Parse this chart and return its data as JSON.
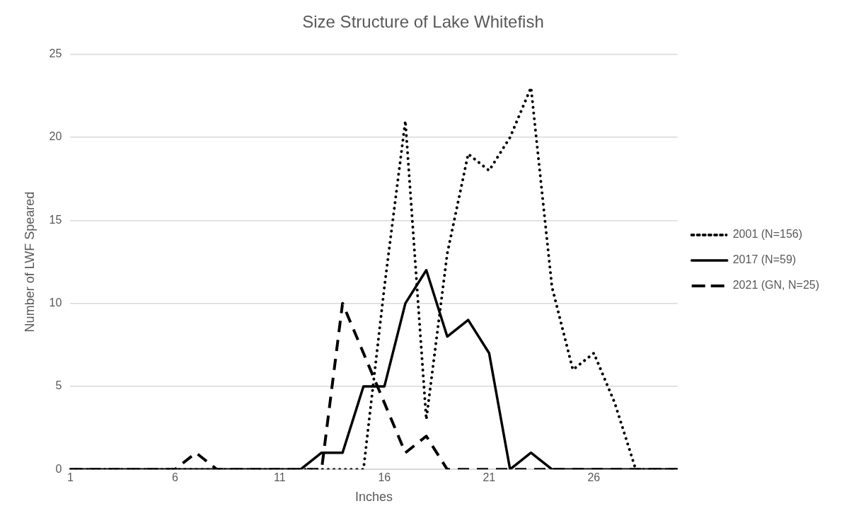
{
  "chart_data": {
    "type": "line",
    "title": "Size Structure of Lake Whitefish",
    "xlabel": "Inches",
    "ylabel": "Number of LWF Speared",
    "categories": [
      "1",
      null,
      null,
      null,
      null,
      "6",
      null,
      null,
      null,
      null,
      "11",
      null,
      null,
      null,
      null,
      "16",
      null,
      null,
      null,
      null,
      "21",
      null,
      null,
      null,
      null,
      "26",
      null,
      null,
      null,
      null
    ],
    "series": [
      {
        "name": "2001 (N=156)",
        "color": "#000000",
        "line_style": "dotted",
        "values": [
          0,
          0,
          0,
          0,
          0,
          0,
          0,
          0,
          0,
          0,
          0,
          0,
          0,
          0,
          0,
          11,
          21,
          3,
          13,
          19,
          18,
          20,
          23,
          11,
          6,
          7,
          4,
          0,
          0,
          0
        ]
      },
      {
        "name": "2017 (N=59)",
        "color": "#000000",
        "line_style": "solid",
        "values": [
          0,
          0,
          0,
          0,
          0,
          0,
          0,
          0,
          0,
          0,
          0,
          0,
          1,
          1,
          5,
          5,
          10,
          12,
          8,
          9,
          7,
          0,
          1,
          0,
          0,
          0,
          0,
          0,
          0,
          0
        ]
      },
      {
        "name": "2021 (GN, N=25)",
        "color": "#000000",
        "line_style": "dashed",
        "values": [
          0,
          0,
          0,
          0,
          0,
          0,
          1,
          0,
          0,
          0,
          0,
          0,
          0,
          10,
          7,
          4,
          1,
          2,
          0,
          0,
          0,
          0,
          0,
          0,
          0,
          0,
          0,
          0,
          0,
          0
        ]
      }
    ],
    "ylim": [
      0,
      25
    ],
    "yticks": [
      0,
      5,
      10,
      15,
      20,
      25
    ],
    "grid": "y",
    "legend": "right",
    "marker": "none"
  }
}
